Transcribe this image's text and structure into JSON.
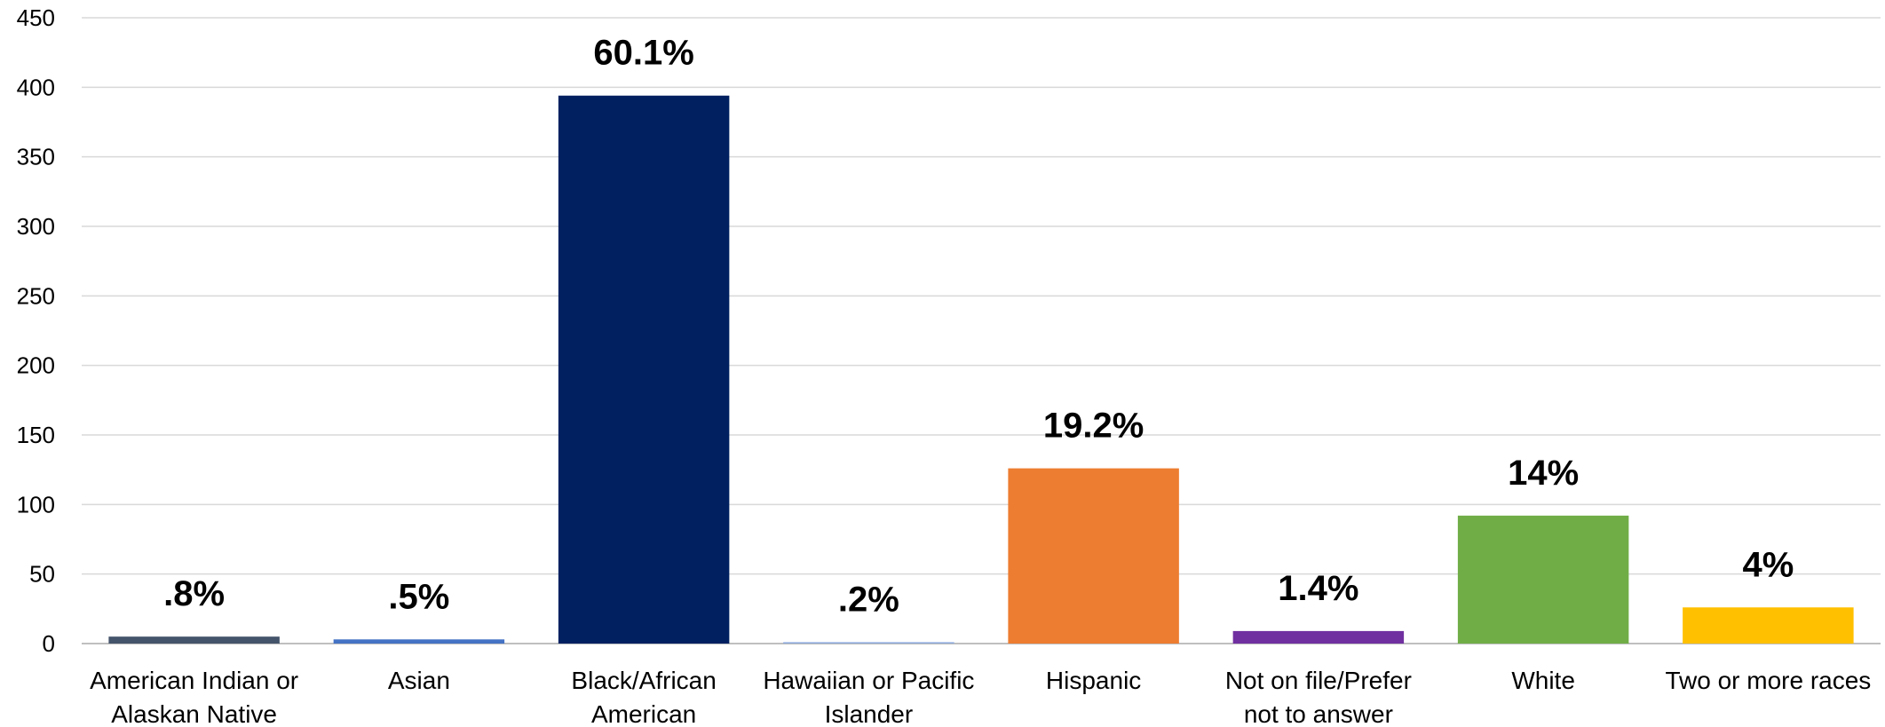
{
  "chart_data": {
    "type": "bar",
    "title": "",
    "xlabel": "",
    "ylabel": "",
    "ylim": [
      0,
      450
    ],
    "yticks": [
      0,
      50,
      100,
      150,
      200,
      250,
      300,
      350,
      400,
      450
    ],
    "grid": true,
    "legend": "none",
    "categories": [
      [
        "American Indian or",
        "Alaskan Native"
      ],
      [
        "Asian"
      ],
      [
        "Black/African",
        "American"
      ],
      [
        "Hawaiian or Pacific",
        "Islander"
      ],
      [
        "Hispanic"
      ],
      [
        "Not on file/Prefer",
        "not to answer"
      ],
      [
        "White"
      ],
      [
        "Two or more races"
      ]
    ],
    "values": [
      5,
      3,
      394,
      1,
      126,
      9,
      92,
      26
    ],
    "data_labels": [
      ".8%",
      ".5%",
      "60.1%",
      ".2%",
      "19.2%",
      "1.4%",
      "14%",
      "4%"
    ],
    "colors": [
      "#44546a",
      "#4472c4",
      "#002060",
      "#8faadc",
      "#ed7d31",
      "#7030a0",
      "#70ad47",
      "#ffc000"
    ]
  }
}
